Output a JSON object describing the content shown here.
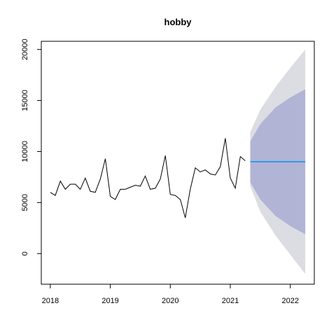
{
  "chart_data": {
    "type": "line",
    "title": "hobby",
    "xlabel": "",
    "ylabel": "",
    "xlim": [
      2017.85,
      2022.4
    ],
    "ylim": [
      -3000,
      20800
    ],
    "x_ticks": [
      "2018",
      "2019",
      "2020",
      "2021",
      "2022"
    ],
    "x_tick_values": [
      2018,
      2019,
      2020,
      2021,
      2022
    ],
    "y_ticks": [
      "0",
      "5000",
      "10000",
      "15000",
      "20000"
    ],
    "y_tick_values": [
      0,
      5000,
      10000,
      15000,
      20000
    ],
    "grid": false,
    "legend": "none",
    "series": [
      {
        "kind": "observed",
        "color": "#000000",
        "x": [
          2018.0,
          2018.083,
          2018.167,
          2018.25,
          2018.333,
          2018.417,
          2018.5,
          2018.583,
          2018.667,
          2018.75,
          2018.833,
          2018.917,
          2019.0,
          2019.083,
          2019.167,
          2019.25,
          2019.333,
          2019.417,
          2019.5,
          2019.583,
          2019.667,
          2019.75,
          2019.833,
          2019.917,
          2020.0,
          2020.083,
          2020.167,
          2020.25,
          2020.333,
          2020.417,
          2020.5,
          2020.583,
          2020.667,
          2020.75,
          2020.833,
          2020.917,
          2021.0,
          2021.083,
          2021.167,
          2021.25
        ],
        "values": [
          6000,
          5700,
          7100,
          6300,
          6800,
          6800,
          6300,
          7400,
          6100,
          6000,
          7300,
          9300,
          5600,
          5300,
          6300,
          6300,
          6500,
          6700,
          6600,
          7600,
          6300,
          6400,
          7300,
          9600,
          5800,
          5700,
          5300,
          3500,
          6300,
          8400,
          8000,
          8200,
          7800,
          7700,
          8500,
          11300,
          7400,
          6400,
          9500,
          9100
        ]
      },
      {
        "kind": "forecast-mean",
        "color": "#3399ee",
        "x": [
          2021.333,
          2022.25
        ],
        "values": [
          9000,
          9000
        ]
      }
    ],
    "intervals": [
      {
        "level": "95",
        "color": "#dcdce3",
        "x": [
          2021.333,
          2021.5,
          2021.75,
          2022.0,
          2022.25
        ],
        "lower": [
          6600,
          4100,
          1800,
          -100,
          -2000
        ],
        "upper": [
          11900,
          14100,
          16300,
          18200,
          20000
        ]
      },
      {
        "level": "80",
        "color": "#b1b4d4",
        "x": [
          2021.333,
          2021.5,
          2021.75,
          2022.0,
          2022.25
        ],
        "lower": [
          7000,
          5300,
          3700,
          2700,
          1900
        ],
        "upper": [
          11000,
          12700,
          14300,
          15300,
          16100
        ]
      }
    ]
  }
}
